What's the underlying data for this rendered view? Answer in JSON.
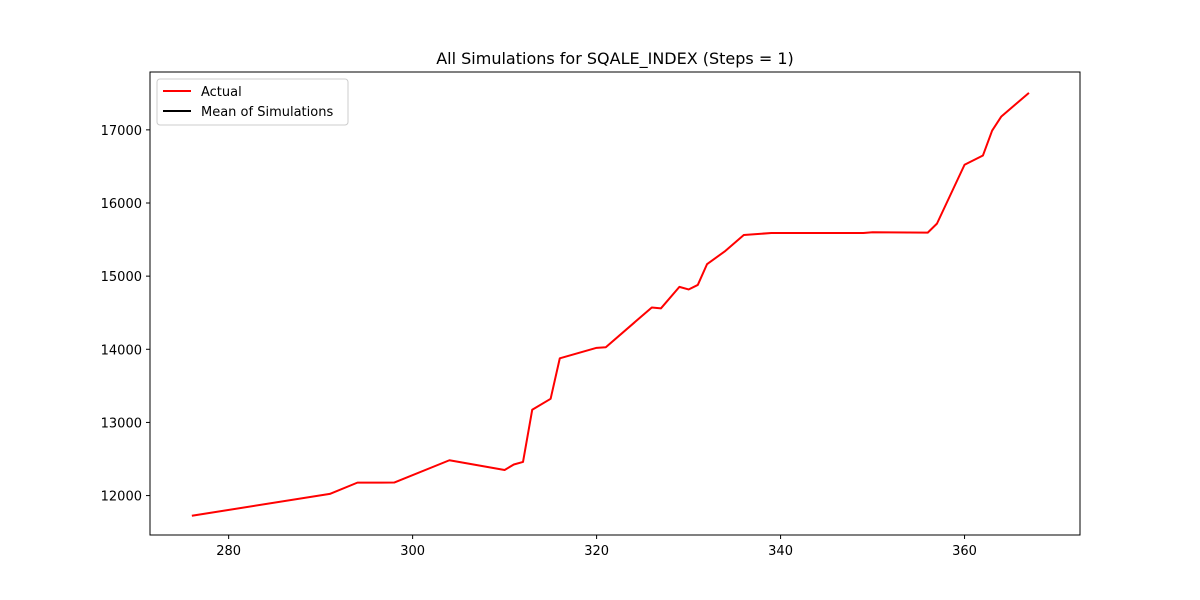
{
  "chart_data": {
    "type": "line",
    "title": "All Simulations for SQALE_INDEX (Steps = 1)",
    "xlabel": "",
    "ylabel": "",
    "xlim": [
      271.45,
      372.55
    ],
    "ylim": [
      11461,
      17791
    ],
    "xticks": [
      280,
      300,
      320,
      340,
      360
    ],
    "yticks": [
      12000,
      13000,
      14000,
      15000,
      16000,
      17000
    ],
    "grid": false,
    "legend_position": "top-left",
    "series": [
      {
        "name": "Actual",
        "color": "#ff0000",
        "x": [
          276,
          291,
          294,
          298,
          304,
          310,
          311,
          312,
          313,
          315,
          316,
          320,
          321,
          326,
          327,
          329,
          330,
          331,
          332,
          334,
          336,
          339,
          349,
          350,
          356,
          357,
          360,
          362,
          363,
          364,
          367
        ],
        "y": [
          11724,
          12023,
          12177,
          12178,
          12483,
          12350,
          12425,
          12460,
          13173,
          13323,
          13877,
          14020,
          14028,
          14572,
          14560,
          14853,
          14818,
          14880,
          15163,
          15345,
          15562,
          15590,
          15590,
          15600,
          15595,
          15718,
          16523,
          16650,
          16990,
          17183,
          17505
        ]
      },
      {
        "name": "Mean of Simulations",
        "color": "#000000",
        "x": [],
        "y": []
      }
    ]
  }
}
